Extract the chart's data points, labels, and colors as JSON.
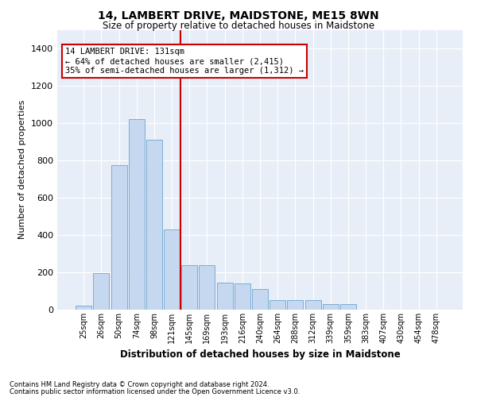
{
  "title": "14, LAMBERT DRIVE, MAIDSTONE, ME15 8WN",
  "subtitle": "Size of property relative to detached houses in Maidstone",
  "xlabel": "Distribution of detached houses by size in Maidstone",
  "ylabel": "Number of detached properties",
  "categories": [
    "25sqm",
    "26sqm",
    "50sqm",
    "74sqm",
    "98sqm",
    "121sqm",
    "145sqm",
    "169sqm",
    "193sqm",
    "216sqm",
    "240sqm",
    "264sqm",
    "288sqm",
    "312sqm",
    "339sqm",
    "359sqm",
    "383sqm",
    "407sqm",
    "430sqm",
    "454sqm",
    "478sqm"
  ],
  "values": [
    20,
    195,
    775,
    1020,
    910,
    430,
    240,
    240,
    145,
    140,
    110,
    50,
    50,
    50,
    28,
    30,
    0,
    0,
    0,
    0,
    0
  ],
  "bar_color": "#c5d8f0",
  "bar_edge_color": "#7aadd4",
  "background_color": "#e8eef7",
  "grid_color": "#ffffff",
  "annotation_box_text": "14 LAMBERT DRIVE: 131sqm\n← 64% of detached houses are smaller (2,415)\n35% of semi-detached houses are larger (1,312) →",
  "annotation_box_color": "#ffffff",
  "annotation_box_edge_color": "#cc0000",
  "vline_color": "#cc0000",
  "ylim": [
    0,
    1500
  ],
  "yticks": [
    0,
    200,
    400,
    600,
    800,
    1000,
    1200,
    1400
  ],
  "footnote1": "Contains HM Land Registry data © Crown copyright and database right 2024.",
  "footnote2": "Contains public sector information licensed under the Open Government Licence v3.0."
}
